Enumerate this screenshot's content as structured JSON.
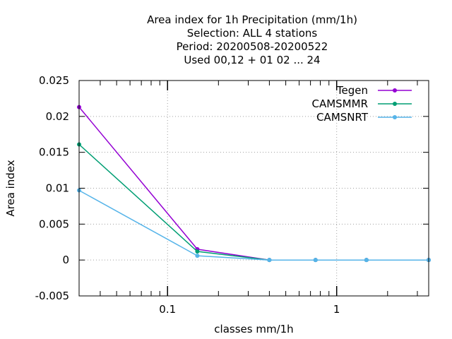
{
  "chart_data": {
    "type": "line",
    "title_lines": [
      "Area index  for 1h Precipitation (mm/1h)",
      "Selection: ALL      4 stations",
      "Period: 20200508-20200522",
      "Used  00,12  + 01 02 ... 24"
    ],
    "xlabel": "classes mm/1h",
    "ylabel": "Area index",
    "x_scale": "log",
    "xlim": [
      0.03,
      3.5
    ],
    "ylim": [
      -0.005,
      0.025
    ],
    "x_ticks": [
      {
        "value": 0.1,
        "label": "0.1"
      },
      {
        "value": 1,
        "label": "1"
      }
    ],
    "y_ticks": [
      {
        "value": -0.005,
        "label": "-0.005"
      },
      {
        "value": 0,
        "label": "0"
      },
      {
        "value": 0.005,
        "label": "0.005"
      },
      {
        "value": 0.01,
        "label": "0.01"
      },
      {
        "value": 0.015,
        "label": "0.015"
      },
      {
        "value": 0.02,
        "label": "0.02"
      },
      {
        "value": 0.025,
        "label": "0.025"
      }
    ],
    "grid": true,
    "legend_position": "top-right",
    "x": [
      0.03,
      0.15,
      0.4,
      0.75,
      1.5,
      3.5
    ],
    "series": [
      {
        "name": "Tegen",
        "color": "#9400d3",
        "values": [
          0.0213,
          0.0015,
          0.0,
          0.0,
          0.0,
          0.0
        ]
      },
      {
        "name": "CAMSMMR",
        "color": "#009e73",
        "values": [
          0.0161,
          0.0012,
          0.0,
          0.0,
          0.0,
          0.0
        ]
      },
      {
        "name": "CAMSNRT",
        "color": "#56b4e9",
        "values": [
          0.0097,
          0.0006,
          0.0,
          0.0,
          0.0,
          0.0
        ]
      }
    ]
  }
}
